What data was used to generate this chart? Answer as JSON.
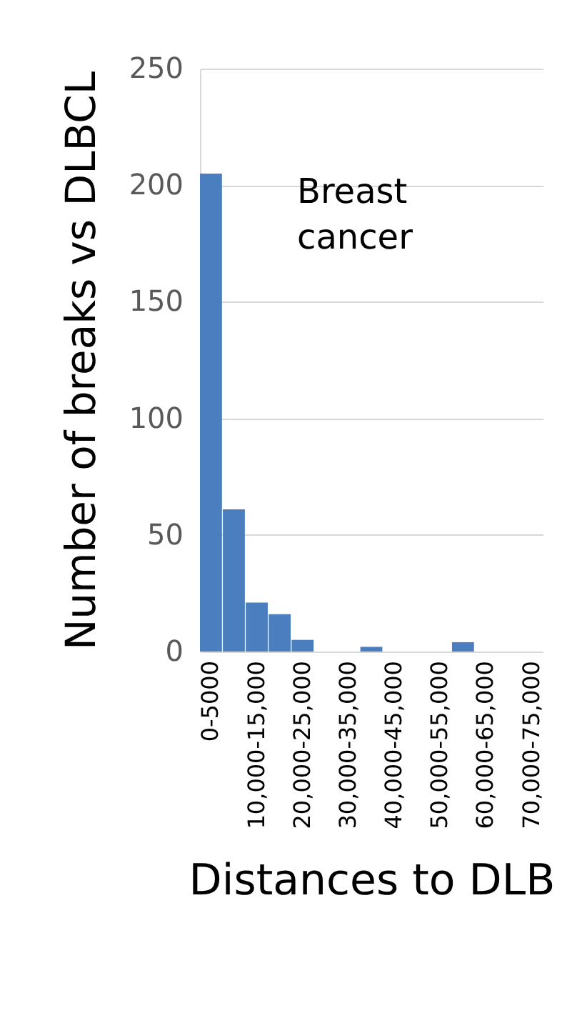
{
  "chart_data": {
    "type": "bar",
    "categories": [
      "0-5000",
      null,
      "10,000-15,000",
      null,
      "20,000-25,000",
      null,
      "30,000-35,000",
      null,
      "40,000-45,000",
      null,
      "50,000-55,000",
      null,
      "60,000-65,000",
      null,
      "70,000-75,000"
    ],
    "values": [
      205,
      61,
      21,
      16,
      5,
      0,
      0,
      2,
      0,
      0,
      0,
      4,
      0,
      0,
      0
    ],
    "color": "#4a7ebf",
    "ylim": [
      0,
      250
    ],
    "yticks": [
      0,
      50,
      100,
      150,
      200,
      250
    ],
    "grid": "y",
    "ylabel": "Number of breaks vs DLBCL",
    "xlabel": "Distances to DLB",
    "annotations": [
      "Breast cancer"
    ]
  }
}
